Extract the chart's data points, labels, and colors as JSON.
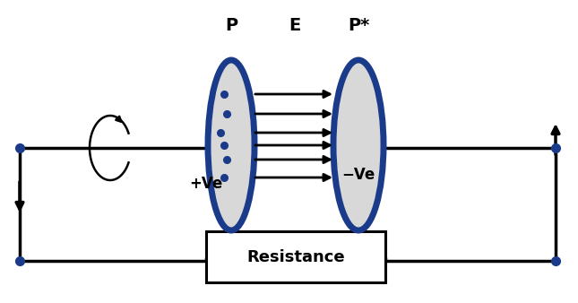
{
  "bg_color": "#ffffff",
  "plate_fill": "#d8d8d8",
  "plate_edge_color": "#1a3a8a",
  "plate_edge_lw": 5,
  "label_P": "P",
  "label_E": "E",
  "label_Pstar": "P*",
  "label_plus": "+Ve",
  "label_minus": "−Ve",
  "resistance_label": "Resistance",
  "circuit_color": "#000000",
  "dot_color": "#1a3a8a",
  "circuit_lw": 2.5,
  "field_arrow_lw": 2.0,
  "coil_color": "#000000"
}
